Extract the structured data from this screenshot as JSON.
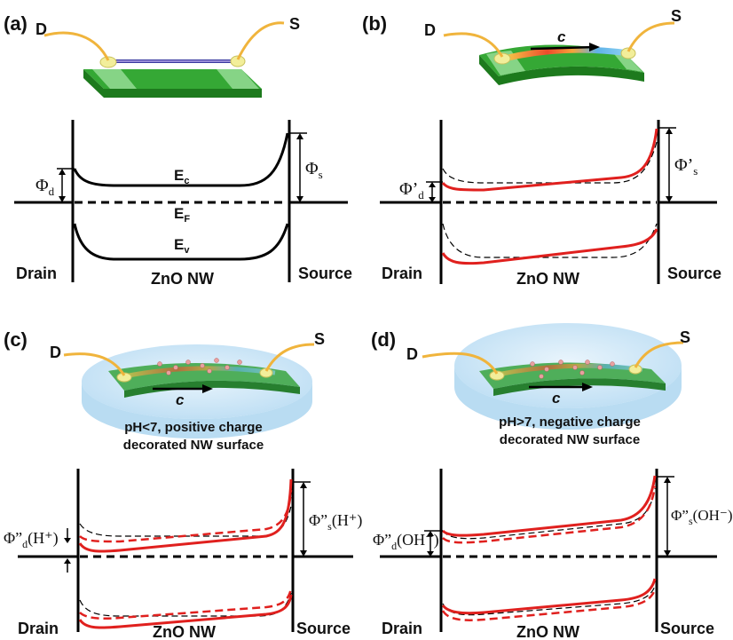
{
  "panels": [
    {
      "letter": "(a)",
      "drain_contact": "D",
      "source_contact": "S",
      "current_arrow": "",
      "nw_label": "ZnO NW",
      "drain_label": "Drain",
      "source_label": "Source",
      "ec_label": "E",
      "ec_sub": "c",
      "ef_label": "E",
      "ef_sub": "F",
      "ev_label": "E",
      "ev_sub": "v",
      "phi_d": "Φ",
      "phi_d_sub": "d",
      "phi_s": "Φ",
      "phi_s_sub": "s",
      "caption_line1": "",
      "caption_line2": ""
    },
    {
      "letter": "(b)",
      "drain_contact": "D",
      "source_contact": "S",
      "current_arrow": "c",
      "nw_label": "ZnO NW",
      "drain_label": "Drain",
      "source_label": "Source",
      "phi_d": "Φ’",
      "phi_d_sub": "d",
      "phi_s": "Φ’",
      "phi_s_sub": "s",
      "caption_line1": "",
      "caption_line2": ""
    },
    {
      "letter": "(c)",
      "drain_contact": "D",
      "source_contact": "S",
      "current_arrow": "c",
      "nw_label": "ZnO NW",
      "drain_label": "Drain",
      "source_label": "Source",
      "phi_d": "Φ”",
      "phi_d_sub": "d",
      "phi_d_tail": "(H⁺)",
      "phi_s": "Φ”",
      "phi_s_sub": "s",
      "phi_s_tail": "(H⁺)",
      "caption_line1": "pH<7, positive charge",
      "caption_line2": "decorated NW surface"
    },
    {
      "letter": "(d)",
      "drain_contact": "D",
      "source_contact": "S",
      "current_arrow": "c",
      "nw_label": "ZnO NW",
      "drain_label": "Drain",
      "source_label": "Source",
      "phi_d": "Φ”",
      "phi_d_sub": "d",
      "phi_d_tail": "(OH⁻)",
      "phi_s": "Φ”",
      "phi_s_sub": "s",
      "phi_s_tail": "(OH⁻)",
      "caption_line1": "pH>7, negative charge",
      "caption_line2": "decorated NW surface"
    }
  ],
  "colors": {
    "band_default": "#000000",
    "band_modified": "#e0201e",
    "wire": "#f0b43c",
    "substrate_top": "#2fa12f",
    "substrate_side": "#1d7a1d",
    "electrode": "#7fd07f",
    "contact_pad": "#f2ee9a",
    "liquid": "#cfe6f6"
  }
}
